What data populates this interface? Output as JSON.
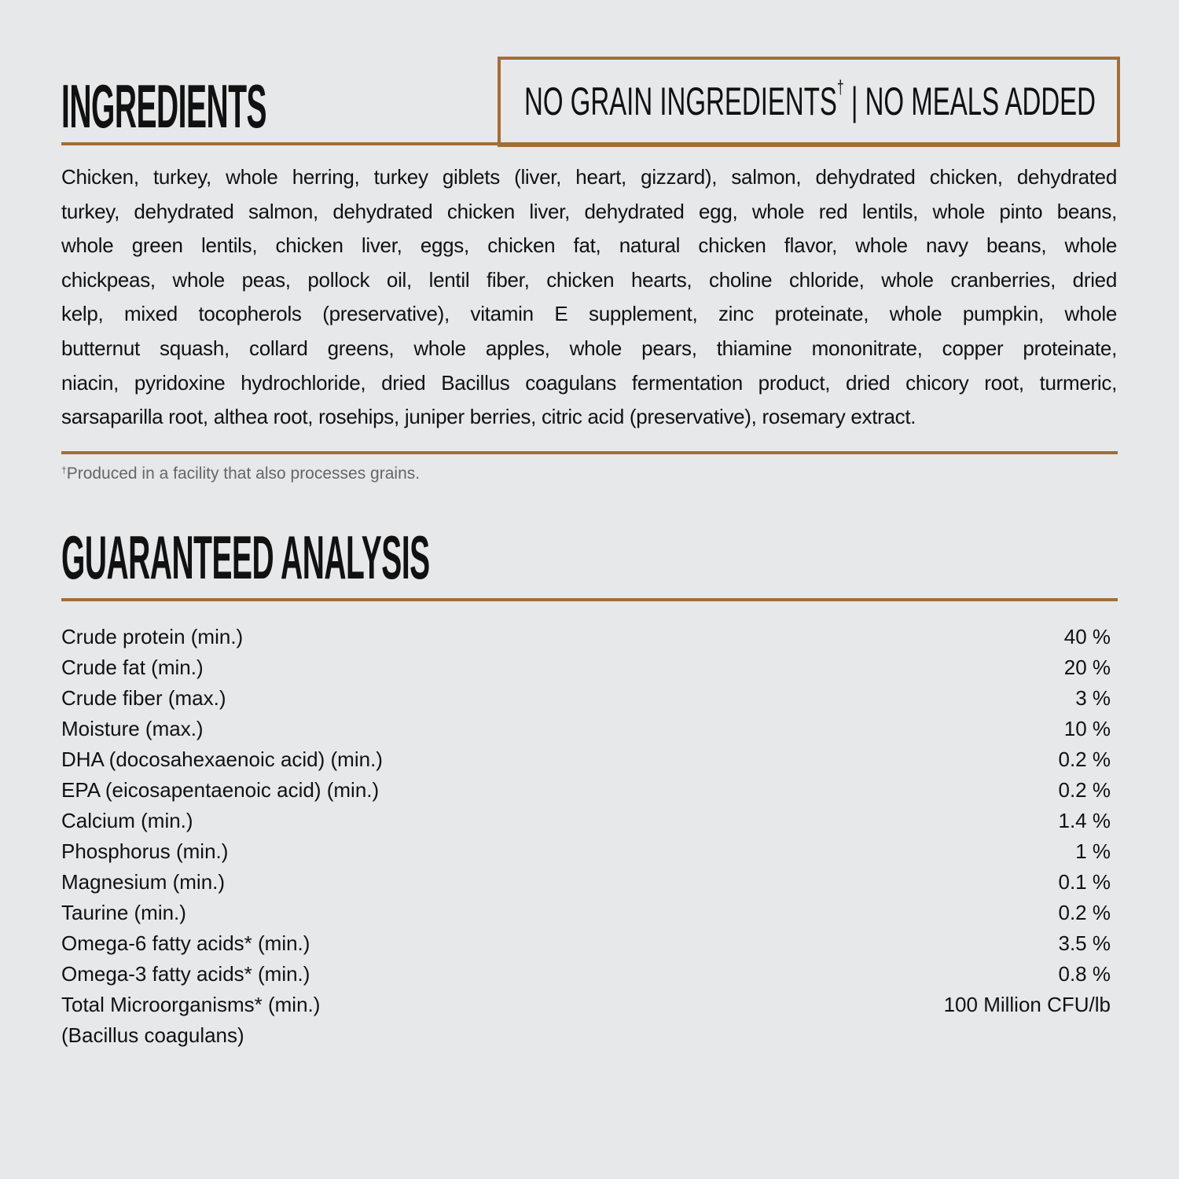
{
  "colors": {
    "accent": "#a46d35",
    "background": "#e7e8ea",
    "text": "#111111"
  },
  "ingredients": {
    "heading": "INGREDIENTS",
    "badge": {
      "part1": "NO GRAIN INGREDIENTS",
      "dagger": "†",
      "part2": " | NO MEALS ADDED"
    },
    "lines": [
      "Chicken, turkey, whole herring, turkey giblets (liver, heart, gizzard), salmon, dehydrated chicken, dehydrated",
      "turkey, dehydrated salmon, dehydrated chicken liver, dehydrated egg, whole red lentils, whole pinto beans,",
      "whole green lentils, chicken liver, eggs, chicken fat, natural chicken flavor, whole navy beans, whole",
      "chickpeas, whole peas, pollock oil, lentil fiber, chicken hearts, choline chloride, whole cranberries, dried",
      "kelp, mixed tocopherols (preservative), vitamin E supplement, zinc proteinate, whole pumpkin, whole",
      "butternut squash, collard greens, whole apples, whole pears, thiamine mononitrate, copper proteinate,",
      "niacin, pyridoxine hydrochloride, dried Bacillus coagulans fermentation product, dried chicory root, turmeric,",
      "sarsaparilla root, althea root, rosehips, juniper berries, citric acid (preservative), rosemary extract."
    ],
    "footnote": {
      "dagger": "†",
      "text": "Produced in a facility that also processes grains."
    }
  },
  "analysis": {
    "heading": "GUARANTEED ANALYSIS",
    "rows": [
      {
        "label": "Crude protein (min.)",
        "value": "40 %"
      },
      {
        "label": "Crude fat (min.)",
        "value": "20 %"
      },
      {
        "label": "Crude fiber (max.)",
        "value": "3 %"
      },
      {
        "label": "Moisture (max.)",
        "value": "10 %"
      },
      {
        "label": "DHA (docosahexaenoic acid) (min.)",
        "value": "0.2 %"
      },
      {
        "label": "EPA (eicosapentaenoic acid) (min.)",
        "value": "0.2 %"
      },
      {
        "label": "Calcium (min.)",
        "value": "1.4 %"
      },
      {
        "label": "Phosphorus (min.)",
        "value": "1 %"
      },
      {
        "label": "Magnesium (min.)",
        "value": "0.1 %"
      },
      {
        "label": "Taurine (min.)",
        "value": "0.2 %"
      },
      {
        "label": "Omega-6 fatty acids* (min.)",
        "value": "3.5 %"
      },
      {
        "label": "Omega-3 fatty acids* (min.)",
        "value": "0.8 %"
      },
      {
        "label": "Total Microorganisms* (min.)",
        "value": "100 Million CFU/lb"
      }
    ],
    "note": "(Bacillus coagulans)"
  }
}
